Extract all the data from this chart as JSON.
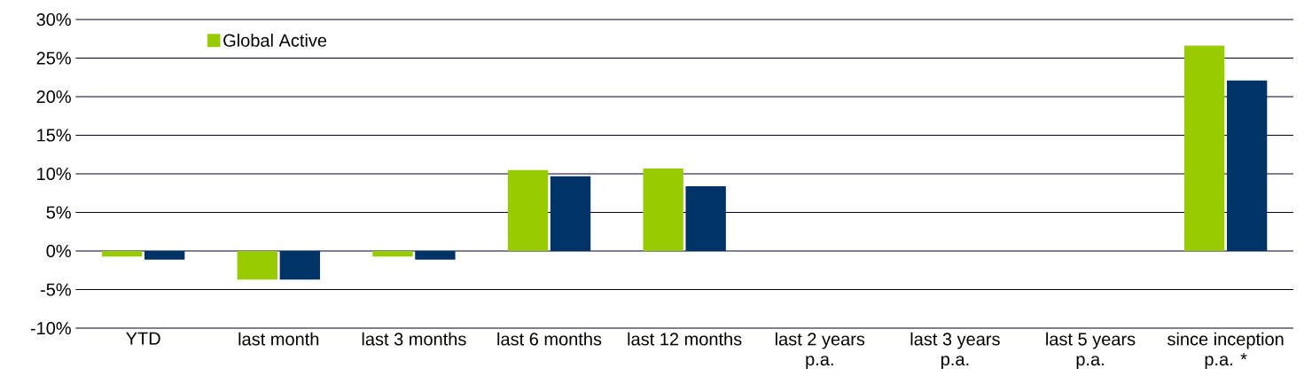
{
  "chart_data": {
    "type": "bar",
    "categories": [
      "YTD",
      "last month",
      "last 3 months",
      "last 6 months",
      "last 12 months",
      "last 2 years p.a.",
      "last 3 years p.a.",
      "last 5 years p.a.",
      "since inception p.a. *"
    ],
    "series": [
      {
        "name": "Global Active",
        "color": "#99cc00",
        "values": [
          -0.7,
          -3.7,
          -0.7,
          10.5,
          10.7,
          null,
          null,
          null,
          26.6
        ]
      },
      {
        "color": "#003366",
        "values": [
          -1.1,
          -3.7,
          -1.1,
          9.7,
          8.4,
          null,
          null,
          null,
          22.1
        ]
      }
    ],
    "ylim": [
      -10,
      30
    ],
    "yticks": [
      {
        "value": -10,
        "label": "-10%"
      },
      {
        "value": -5,
        "label": "-5%"
      },
      {
        "value": 0,
        "label": "0%"
      },
      {
        "value": 5,
        "label": "5%"
      },
      {
        "value": 10,
        "label": "10%"
      },
      {
        "value": 15,
        "label": "15%"
      },
      {
        "value": 20,
        "label": "20%"
      },
      {
        "value": 25,
        "label": "25%"
      },
      {
        "value": 30,
        "label": "30%"
      }
    ],
    "grid": "y",
    "legend": "top left"
  }
}
